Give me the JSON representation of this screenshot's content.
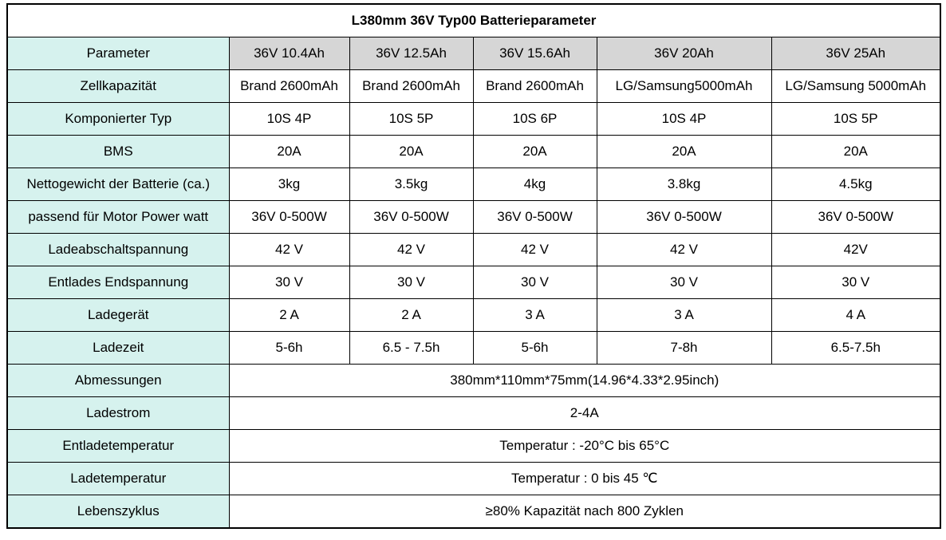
{
  "page": {
    "title": "L380mm 36V Typ00 Batterieparameter"
  },
  "colors": {
    "title_red": "#ff0000",
    "label_bg": "#d6f2ee",
    "header_bg": "#d6d6d6",
    "border": "#000000"
  },
  "table": {
    "columns": [
      "Parameter",
      "36V 10.4Ah",
      "36V 12.5Ah",
      "36V 15.6Ah",
      "36V 20Ah",
      "36V 25Ah"
    ],
    "rows": [
      {
        "label": "Zellkapazität",
        "values": [
          "Brand 2600mAh",
          "Brand 2600mAh",
          "Brand 2600mAh",
          "LG/Samsung5000mAh",
          "LG/Samsung 5000mAh"
        ]
      },
      {
        "label": "Komponierter Typ",
        "values": [
          "10S 4P",
          "10S 5P",
          "10S 6P",
          "10S 4P",
          "10S 5P"
        ]
      },
      {
        "label": "BMS",
        "values": [
          "20A",
          "20A",
          "20A",
          "20A",
          "20A"
        ]
      },
      {
        "label": "Nettogewicht der Batterie (ca.)",
        "values": [
          "3kg",
          "3.5kg",
          "4kg",
          "3.8kg",
          "4.5kg"
        ]
      },
      {
        "label": "passend für Motor Power watt",
        "values": [
          "36V 0-500W",
          "36V 0-500W",
          "36V 0-500W",
          "36V 0-500W",
          "36V 0-500W"
        ]
      },
      {
        "label": "Ladeabschaltspannung",
        "values": [
          "42 V",
          "42 V",
          "42 V",
          "42 V",
          "42V"
        ]
      },
      {
        "label": "Entlades Endspannung",
        "values": [
          "30 V",
          "30 V",
          "30 V",
          "30 V",
          "30 V"
        ]
      },
      {
        "label": "Ladegerät",
        "values": [
          "2 A",
          "2 A",
          "3 A",
          "3 A",
          "4 A"
        ]
      },
      {
        "label": "Ladezeit",
        "values": [
          "5-6h",
          "6.5 - 7.5h",
          "5-6h",
          "7-8h",
          "6.5-7.5h"
        ]
      }
    ],
    "full_width_rows": [
      {
        "label": "Abmessungen",
        "value": "380mm*110mm*75mm(14.96*4.33*2.95inch)"
      },
      {
        "label": "Ladestrom",
        "value": "2-4A"
      },
      {
        "label": "Entladetemperatur",
        "value": "Temperatur : -20°C bis 65°C"
      },
      {
        "label": "Ladetemperatur",
        "value": "Temperatur : 0 bis 45 ℃"
      },
      {
        "label": "Lebenszyklus",
        "value": "≥80% Kapazität nach 800 Zyklen"
      }
    ]
  }
}
